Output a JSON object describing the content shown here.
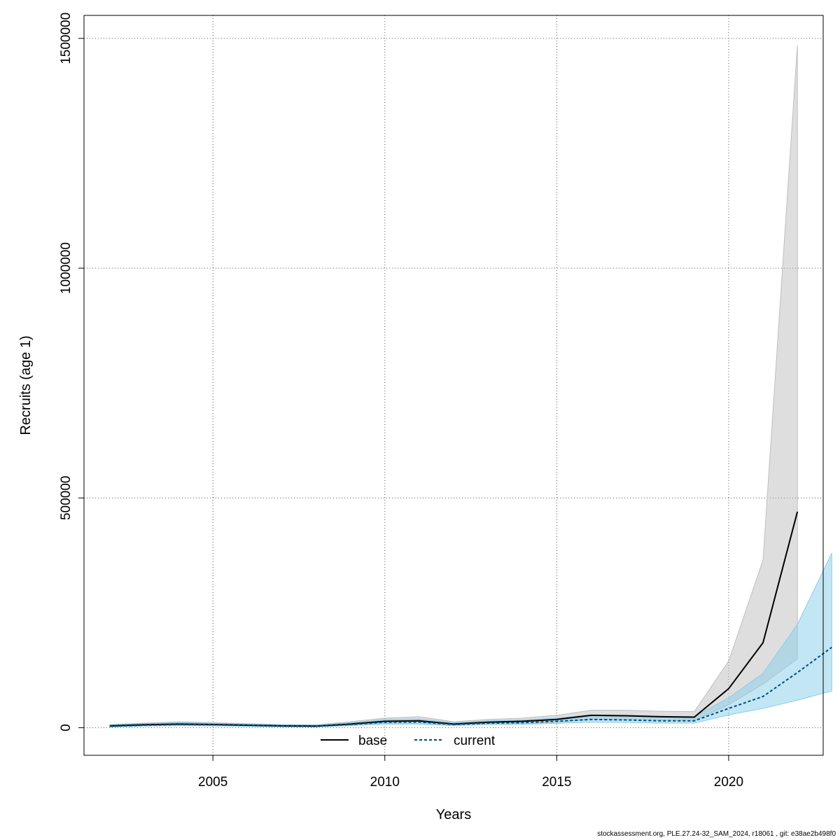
{
  "chart_data": {
    "type": "area",
    "xlabel": "Years",
    "ylabel": "Recruits (age 1)",
    "xlim": [
      2001.25,
      2022.75
    ],
    "ylim": [
      -60000,
      1550000
    ],
    "x_ticks": [
      2005,
      2010,
      2015,
      2020
    ],
    "y_ticks": [
      0,
      500000,
      1000000,
      1500000
    ],
    "grid": true,
    "legend_position": "bottom-center",
    "legend": [
      {
        "label": "base",
        "line_style": "solid"
      },
      {
        "label": "current",
        "line_style": "dashed"
      }
    ],
    "series": [
      {
        "name": "base",
        "line_color": "#000000",
        "band_color": "#bebebe",
        "x": [
          2002,
          2003,
          2004,
          2005,
          2006,
          2007,
          2008,
          2009,
          2010,
          2011,
          2012,
          2013,
          2014,
          2015,
          2016,
          2017,
          2018,
          2019,
          2020,
          2021,
          2022
        ],
        "values": [
          4000,
          6500,
          8000,
          7000,
          5500,
          4000,
          3500,
          8000,
          14000,
          15000,
          8000,
          12000,
          14000,
          18000,
          27000,
          26000,
          24000,
          23000,
          85000,
          185000,
          470000
        ],
        "lower": [
          2000,
          4000,
          5000,
          4500,
          3500,
          2500,
          2000,
          5000,
          9000,
          9000,
          5000,
          8000,
          9000,
          12000,
          18000,
          17000,
          16000,
          15000,
          50000,
          95000,
          150000
        ],
        "upper": [
          7000,
          10000,
          13000,
          11000,
          9000,
          7000,
          6500,
          13000,
          21000,
          24000,
          13000,
          18000,
          21000,
          27000,
          38000,
          38000,
          36000,
          35000,
          145000,
          365000,
          1485000
        ]
      },
      {
        "name": "current",
        "line_color": "#004c7a",
        "band_color": "#87ceeb",
        "x": [
          2002,
          2003,
          2004,
          2005,
          2006,
          2007,
          2008,
          2009,
          2010,
          2011,
          2012,
          2013,
          2014,
          2015,
          2016,
          2017,
          2018,
          2019,
          2020,
          2021,
          2022,
          2023
        ],
        "values": [
          3000,
          5500,
          7000,
          6500,
          5000,
          3500,
          3000,
          7000,
          12000,
          12500,
          7000,
          10000,
          11000,
          14000,
          18000,
          17000,
          15000,
          15000,
          42000,
          68000,
          120000,
          175000
        ],
        "lower": [
          1500,
          3500,
          4500,
          4000,
          3000,
          2000,
          1800,
          4500,
          8000,
          8000,
          4500,
          7000,
          7500,
          9500,
          12000,
          11500,
          10000,
          10000,
          28000,
          42000,
          60000,
          80000
        ],
        "upper": [
          6000,
          9000,
          11000,
          10000,
          8000,
          6000,
          5500,
          11000,
          18000,
          19000,
          11000,
          15000,
          17000,
          21000,
          28000,
          27000,
          25000,
          24000,
          65000,
          118000,
          225000,
          380000
        ]
      }
    ]
  },
  "footer_text": "stockassessment.org, PLE.27.24-32_SAM_2024, r18061 , git: e38ae2b498f0"
}
